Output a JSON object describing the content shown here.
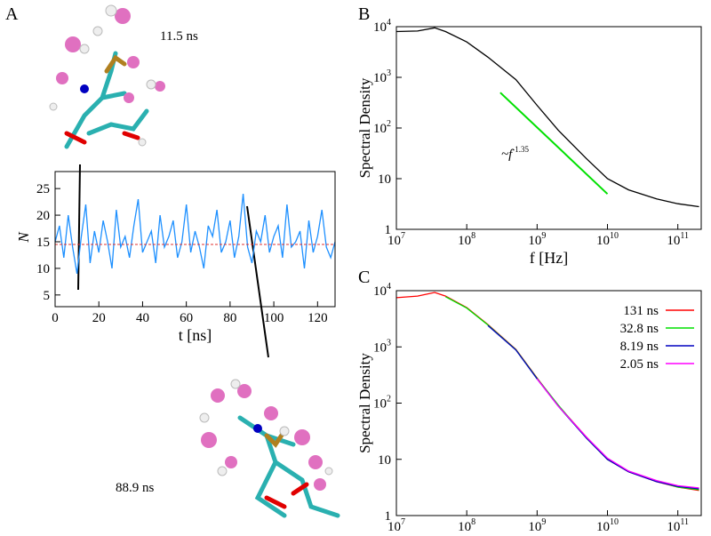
{
  "panels": [
    "A",
    "B",
    "C"
  ],
  "snapshots": [
    "11.5 ns",
    "88.9 ns"
  ],
  "chart_data": [
    {
      "type": "line",
      "xlabel": "t [ns]",
      "ylabel": "N",
      "xlim": [
        0,
        128
      ],
      "ylim": [
        2.8,
        28.2
      ],
      "xticks": [
        0,
        20,
        40,
        60,
        80,
        100,
        120
      ],
      "yticks": [
        5,
        10,
        15,
        20,
        25
      ],
      "x": [
        0,
        2,
        4,
        6,
        8,
        10,
        12,
        14,
        16,
        18,
        20,
        22,
        24,
        26,
        28,
        30,
        32,
        34,
        36,
        38,
        40,
        42,
        44,
        46,
        48,
        50,
        52,
        54,
        56,
        58,
        60,
        62,
        64,
        66,
        68,
        70,
        72,
        74,
        76,
        78,
        80,
        82,
        84,
        86,
        88,
        90,
        92,
        94,
        96,
        98,
        100,
        102,
        104,
        106,
        108,
        110,
        112,
        114,
        116,
        118,
        120,
        122,
        124,
        126,
        128
      ],
      "series": [
        {
          "color": "#1e90ff",
          "values": [
            15,
            18,
            12,
            20,
            14,
            9,
            16,
            22,
            11,
            17,
            13,
            19,
            15,
            10,
            21,
            14,
            16,
            12,
            18,
            23,
            13,
            15,
            17,
            11,
            20,
            14,
            16,
            19,
            12,
            15,
            22,
            13,
            17,
            14,
            10,
            18,
            16,
            21,
            13,
            15,
            19,
            12,
            16,
            24,
            14,
            11,
            17,
            15,
            20,
            13,
            16,
            18,
            12,
            22,
            14,
            15,
            17,
            10,
            19,
            13,
            16,
            21,
            14,
            12,
            15
          ]
        }
      ],
      "reference_line": {
        "value": 14.5,
        "color": "#e03030"
      }
    },
    {
      "type": "line",
      "log_x": true,
      "log_y": true,
      "xlabel": "f [Hz]",
      "ylabel": "Spectral Density",
      "xlim": [
        10000000,
        215000000000
      ],
      "ylim": [
        1,
        10000
      ],
      "xticks": [
        {
          "value": 10000000,
          "label": "10",
          "exponent": "7"
        },
        {
          "value": 100000000,
          "label": "10",
          "exponent": "8"
        },
        {
          "value": 1000000000,
          "label": "10",
          "exponent": "9"
        },
        {
          "value": 10000000000,
          "label": "10",
          "exponent": "10"
        },
        {
          "value": 100000000000,
          "label": "10",
          "exponent": "11"
        }
      ],
      "yticks": [
        1,
        10,
        {
          "value": 100,
          "label": "10",
          "exponent": "2"
        },
        {
          "value": 1000,
          "label": "10",
          "exponent": "3"
        },
        {
          "value": 10000,
          "label": "10",
          "exponent": "4"
        }
      ],
      "x": [
        10000000,
        20000000,
        35000000,
        50000000,
        100000000,
        200000000,
        500000000,
        1000000000,
        2000000000,
        5000000000,
        10000000000,
        20000000000,
        50000000000,
        100000000000,
        200000000000
      ],
      "series": [
        {
          "color": "#000000",
          "values": [
            8000,
            8200,
            9500,
            8000,
            5000,
            2500,
            900,
            280,
            90,
            25,
            10,
            6,
            4,
            3.2,
            2.8
          ]
        }
      ],
      "fit_line": {
        "x": [
          300000000,
          10000000000
        ],
        "values": [
          500,
          5
        ],
        "color": "#00e000"
      },
      "annotation": {
        "text": "~f",
        "exponent": "-1.35"
      }
    },
    {
      "type": "line",
      "log_x": true,
      "log_y": true,
      "xlabel": "f [Hz]",
      "ylabel": "Spectral Density",
      "xlim": [
        10000000,
        215000000000
      ],
      "ylim": [
        1,
        10000
      ],
      "xticks": [
        {
          "value": 10000000,
          "label": "10",
          "exponent": "7"
        },
        {
          "value": 100000000,
          "label": "10",
          "exponent": "8"
        },
        {
          "value": 1000000000,
          "label": "10",
          "exponent": "9"
        },
        {
          "value": 10000000000,
          "label": "10",
          "exponent": "10"
        },
        {
          "value": 100000000000,
          "label": "10",
          "exponent": "11"
        }
      ],
      "yticks": [
        1,
        10,
        {
          "value": 100,
          "label": "10",
          "exponent": "2"
        },
        {
          "value": 1000,
          "label": "10",
          "exponent": "3"
        },
        {
          "value": 10000,
          "label": "10",
          "exponent": "4"
        }
      ],
      "x": [
        10000000,
        20000000,
        35000000,
        50000000,
        100000000,
        200000000,
        500000000,
        1000000000,
        2000000000,
        5000000000,
        10000000000,
        20000000000,
        50000000000,
        100000000000,
        200000000000
      ],
      "series": [
        {
          "name": "131 ns",
          "color": "#ff0000",
          "values": [
            7500,
            8000,
            9300,
            8000,
            5000,
            2500,
            900,
            280,
            90,
            25,
            10,
            6,
            4,
            3.2,
            2.8
          ]
        },
        {
          "name": "32.8 ns",
          "color": "#00e000",
          "values": [
            null,
            null,
            null,
            7800,
            4900,
            2450,
            890,
            275,
            92,
            24,
            10,
            6.1,
            4.1,
            3.2,
            2.9
          ]
        },
        {
          "name": "8.19 ns",
          "color": "#0000c0",
          "values": [
            null,
            null,
            null,
            null,
            null,
            2400,
            880,
            270,
            88,
            24,
            10,
            6,
            4,
            3.3,
            3
          ]
        },
        {
          "name": "2.05 ns",
          "color": "#ff00ff",
          "values": [
            null,
            null,
            null,
            null,
            null,
            null,
            null,
            270,
            88,
            25,
            10.5,
            6.2,
            4.2,
            3.4,
            3.1
          ]
        }
      ]
    }
  ]
}
